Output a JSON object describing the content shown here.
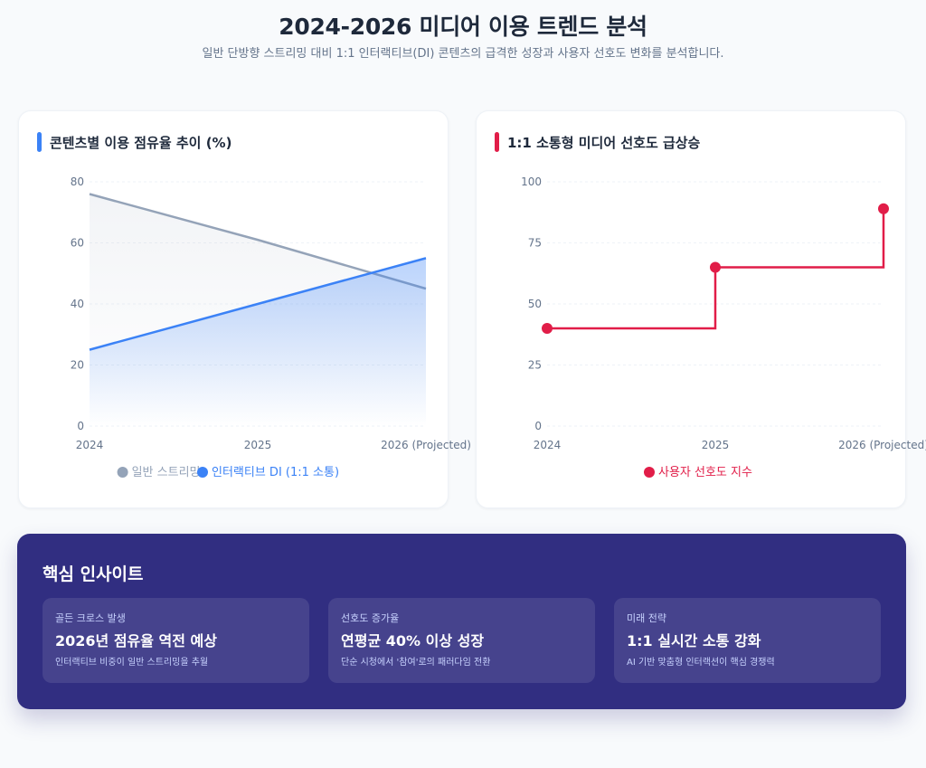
{
  "page": {
    "title": "2024-2026 미디어 이용 트렌드 분석",
    "subtitle": "일반 단방향 스트리밍 대비 1:1 인터랙티브(DI) 콘텐츠의 급격한 성장과 사용자 선호도 변화를 분석합니다."
  },
  "colors": {
    "general": "#94a3b8",
    "interactive": "#3b82f6",
    "preference": "#e11d48",
    "insights_bg": "#312e81"
  },
  "chart_data": [
    {
      "type": "area",
      "title": "콘텐츠별 이용 점유율 추이 (%)",
      "categories": [
        "2024",
        "2025",
        "2026 (Projected)"
      ],
      "ylim": [
        0,
        80
      ],
      "yticks": [
        0,
        20,
        40,
        60,
        80
      ],
      "grid": true,
      "legend_position": "bottom",
      "series": [
        {
          "name": "일반 스트리밍",
          "values": [
            76,
            61,
            45
          ],
          "color": "#94a3b8"
        },
        {
          "name": "인터랙티브 DI (1:1 소통)",
          "values": [
            25,
            40,
            55
          ],
          "color": "#3b82f6"
        }
      ]
    },
    {
      "type": "line",
      "step": true,
      "title": "1:1 소통형 미디어 선호도 급상승",
      "categories": [
        "2024",
        "2025",
        "2026 (Projected)"
      ],
      "ylim": [
        0,
        100
      ],
      "yticks": [
        0,
        25,
        50,
        75,
        100
      ],
      "grid": true,
      "legend_position": "bottom",
      "series": [
        {
          "name": "사용자 선호도 지수",
          "values": [
            40,
            65,
            89
          ],
          "color": "#e11d48"
        }
      ]
    }
  ],
  "insights": {
    "title": "핵심 인사이트",
    "cards": [
      {
        "label": "골든 크로스 발생",
        "headline": "2026년 점유율 역전 예상",
        "desc": "인터랙티브 비중이 일반 스트리밍을 추월"
      },
      {
        "label": "선호도 증가율",
        "headline": "연평균 40% 이상 성장",
        "desc": "단순 시청에서 '참여'로의 패러다임 전환"
      },
      {
        "label": "미래 전략",
        "headline": "1:1 실시간 소통 강화",
        "desc": "AI 기반 맞춤형 인터랙션이 핵심 경쟁력"
      }
    ]
  }
}
